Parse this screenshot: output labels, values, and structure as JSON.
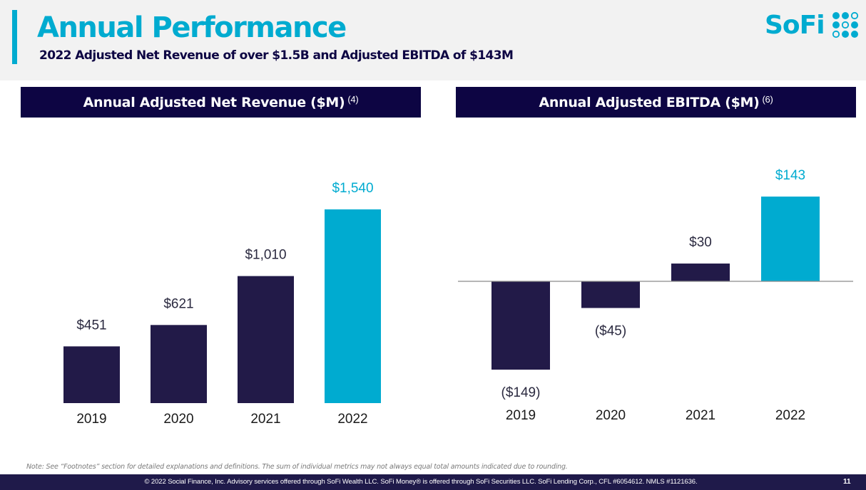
{
  "header": {
    "title": "Annual Performance",
    "subtitle": "2022 Adjusted Net Revenue of over $1.5B and Adjusted EBITDA of $143M",
    "logo_text": "SoFi",
    "logo_icon": "sofi-dot-grid-icon"
  },
  "colors": {
    "brand_cyan": "#00abd0",
    "navy": "#0d0543",
    "bar_navy": "#221a48",
    "footer": "#1f1a4a",
    "band": "#f2f2f2"
  },
  "panels": {
    "revenue": {
      "title": "Annual Adjusted Net Revenue ($M)",
      "footnote": "(4)"
    },
    "ebitda": {
      "title": "Annual Adjusted EBITDA ($M)",
      "footnote": "(6)"
    }
  },
  "chart_data": [
    {
      "type": "bar",
      "title": "Annual Adjusted Net Revenue ($M)",
      "categories": [
        "2019",
        "2020",
        "2021",
        "2022"
      ],
      "values": [
        451,
        621,
        1010,
        1540
      ],
      "labels": [
        "$451",
        "$621",
        "$1,010",
        "$1,540"
      ],
      "highlight_index": 3,
      "xlabel": "",
      "ylabel": "",
      "ylim": [
        0,
        1540
      ],
      "grid": false,
      "legend": "none"
    },
    {
      "type": "bar",
      "title": "Annual Adjusted EBITDA ($M)",
      "categories": [
        "2019",
        "2020",
        "2021",
        "2022"
      ],
      "values": [
        -149,
        -45,
        30,
        143
      ],
      "labels": [
        "($149)",
        "($45)",
        "$30",
        "$143"
      ],
      "highlight_index": 3,
      "xlabel": "",
      "ylabel": "",
      "ylim": [
        -149,
        143
      ],
      "grid": false,
      "legend": "none",
      "zero_line": true
    }
  ],
  "note": "Note: See “Footnotes” section for detailed explanations and definitions. The sum of individual metrics may not always equal total amounts indicated due to rounding.",
  "footer": {
    "text": "© 2022 Social Finance, Inc. Advisory services offered through SoFi Wealth LLC. SoFi Money® is offered through SoFi Securities LLC. SoFi Lending Corp., CFL #6054612. NMLS #1121636.",
    "page_number": "11"
  }
}
